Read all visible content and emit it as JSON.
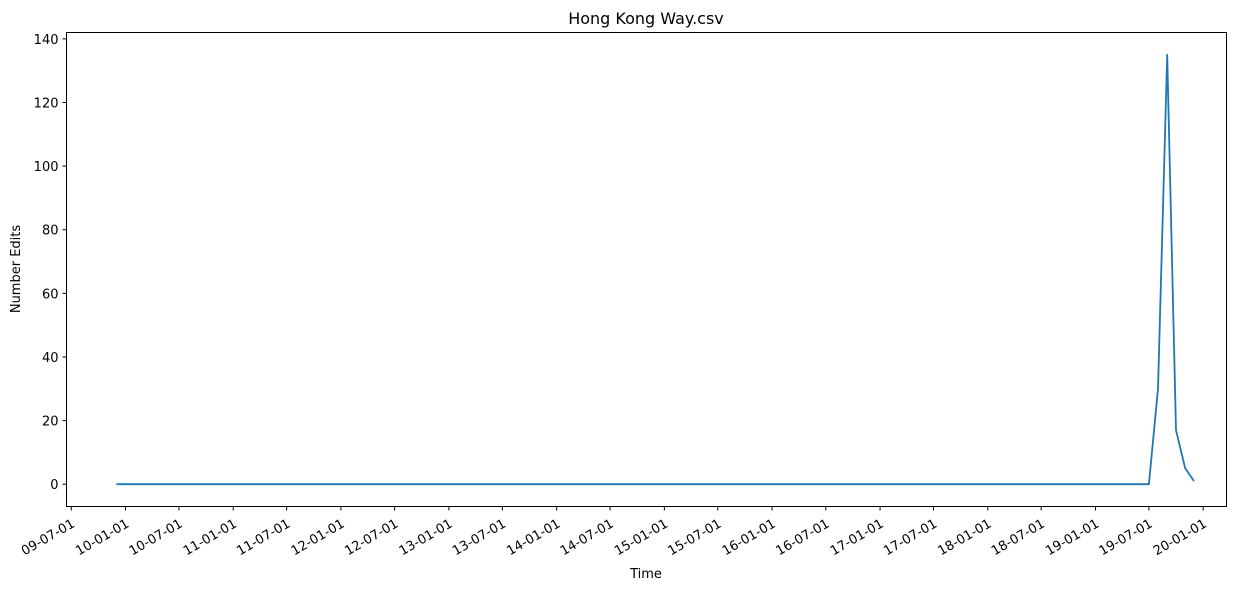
{
  "chart_data": {
    "type": "line",
    "title": "Hong Kong Way.csv",
    "xlabel": "Time",
    "ylabel": "Number Edits",
    "grid": false,
    "legend": "none",
    "x_type": "date",
    "xlim": [
      "2009-06-15",
      "2020-03-20"
    ],
    "ylim": [
      -7,
      142
    ],
    "yticks": [
      0,
      20,
      40,
      60,
      80,
      100,
      120,
      140
    ],
    "xticks": [
      {
        "date": "2009-07-01",
        "label": "09-07-01"
      },
      {
        "date": "2010-01-01",
        "label": "10-01-01"
      },
      {
        "date": "2010-07-01",
        "label": "10-07-01"
      },
      {
        "date": "2011-01-01",
        "label": "11-01-01"
      },
      {
        "date": "2011-07-01",
        "label": "11-07-01"
      },
      {
        "date": "2012-01-01",
        "label": "12-01-01"
      },
      {
        "date": "2012-07-01",
        "label": "12-07-01"
      },
      {
        "date": "2013-01-01",
        "label": "13-01-01"
      },
      {
        "date": "2013-07-01",
        "label": "13-07-01"
      },
      {
        "date": "2014-01-01",
        "label": "14-01-01"
      },
      {
        "date": "2014-07-01",
        "label": "14-07-01"
      },
      {
        "date": "2015-01-01",
        "label": "15-01-01"
      },
      {
        "date": "2015-07-01",
        "label": "15-07-01"
      },
      {
        "date": "2016-01-01",
        "label": "16-01-01"
      },
      {
        "date": "2016-07-01",
        "label": "16-07-01"
      },
      {
        "date": "2017-01-01",
        "label": "17-01-01"
      },
      {
        "date": "2017-07-01",
        "label": "17-07-01"
      },
      {
        "date": "2018-01-01",
        "label": "18-01-01"
      },
      {
        "date": "2018-07-01",
        "label": "18-07-01"
      },
      {
        "date": "2019-01-01",
        "label": "19-01-01"
      },
      {
        "date": "2019-07-01",
        "label": "19-07-01"
      },
      {
        "date": "2020-01-01",
        "label": "20-01-01"
      }
    ],
    "series": [
      {
        "color": "#1f77b4",
        "points": [
          [
            "2009-12-01",
            0
          ],
          [
            "2019-07-01",
            0
          ],
          [
            "2019-08-01",
            30
          ],
          [
            "2019-09-01",
            135
          ],
          [
            "2019-10-01",
            17
          ],
          [
            "2019-11-01",
            5
          ],
          [
            "2019-12-01",
            1
          ]
        ]
      }
    ]
  }
}
